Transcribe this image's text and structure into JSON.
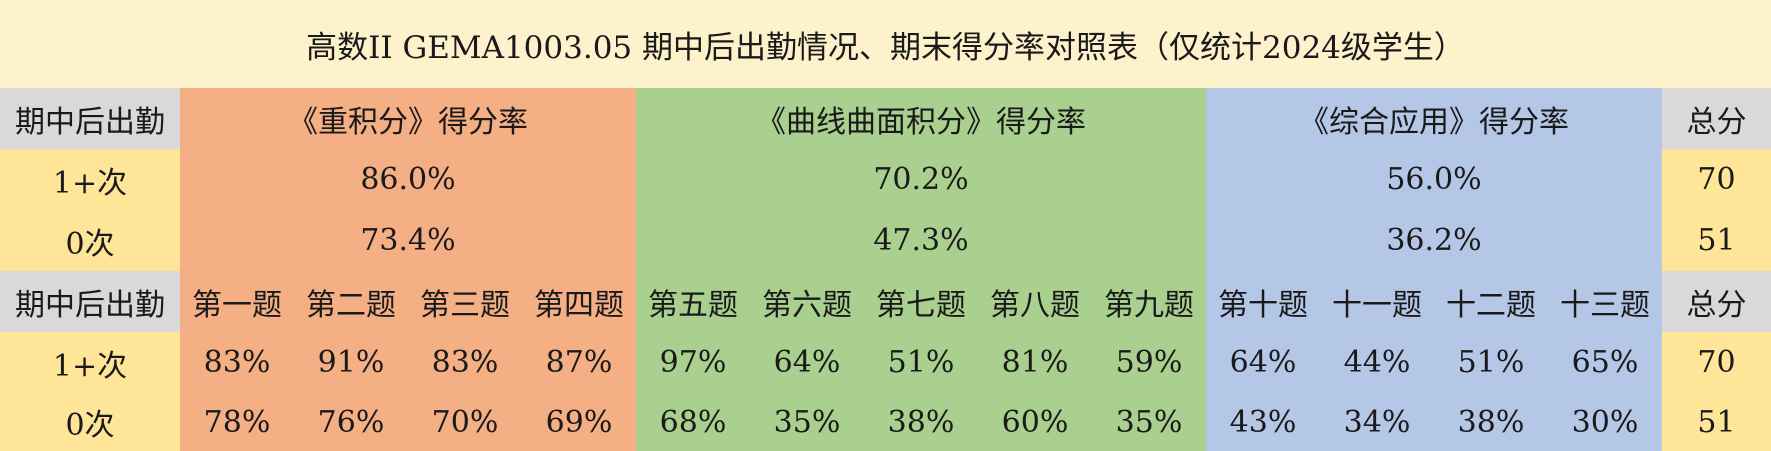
{
  "title": "高数II GEMA1003.05 期中后出勤情况、期末得分率对照表（仅统计2024级学生）",
  "section_table": {
    "header": {
      "attendance_label": "期中后出勤",
      "group1": "《重积分》得分率",
      "group2": "《曲线曲面积分》得分率",
      "group3": "《综合应用》得分率",
      "total_label": "总分"
    },
    "rows": [
      {
        "attendance": "1+次",
        "group1": "86.0%",
        "group2": "70.2%",
        "group3": "56.0%",
        "total": "70"
      },
      {
        "attendance": "0次",
        "group1": "73.4%",
        "group2": "47.3%",
        "group3": "36.2%",
        "total": "51"
      }
    ]
  },
  "question_table": {
    "header": {
      "attendance_label": "期中后出勤",
      "questions": [
        "第一题",
        "第二题",
        "第三题",
        "第四题",
        "第五题",
        "第六题",
        "第七题",
        "第八题",
        "第九题",
        "第十题",
        "十一题",
        "十二题",
        "十三题"
      ],
      "total_label": "总分"
    },
    "rows": [
      {
        "attendance": "1+次",
        "values": [
          "83%",
          "91%",
          "83%",
          "87%",
          "97%",
          "64%",
          "51%",
          "81%",
          "59%",
          "64%",
          "44%",
          "51%",
          "65%"
        ],
        "total": "70"
      },
      {
        "attendance": "0次",
        "values": [
          "78%",
          "76%",
          "70%",
          "69%",
          "68%",
          "35%",
          "38%",
          "60%",
          "35%",
          "43%",
          "34%",
          "38%",
          "30%"
        ],
        "total": "51"
      }
    ]
  },
  "colors": {
    "background": "#fef2cc",
    "label_gray": "#d9d9d9",
    "attendance_yellow": "#ffe598",
    "group1_orange": "#f4af84",
    "group2_green": "#a9d08e",
    "group3_blue": "#b4c7e7"
  }
}
